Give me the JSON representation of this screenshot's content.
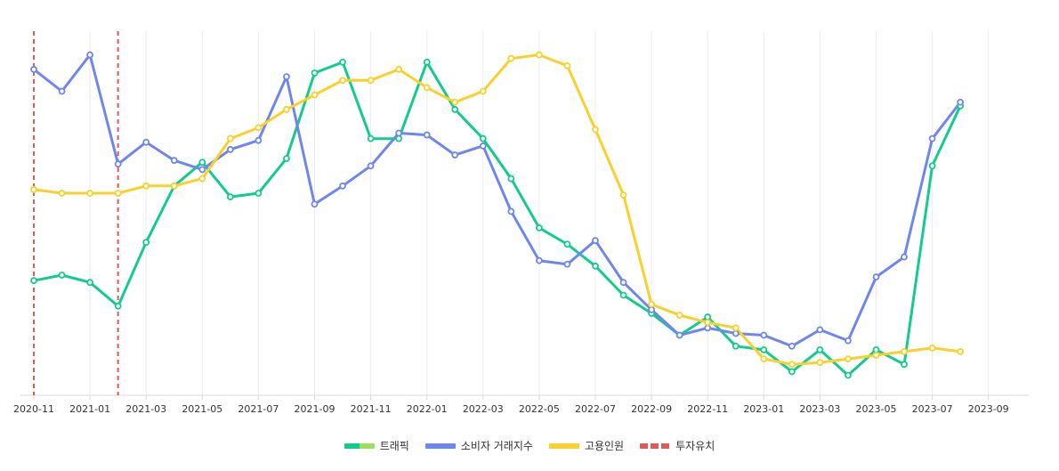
{
  "chart_data": {
    "type": "line",
    "title": "",
    "xlabel": "",
    "ylabel": "",
    "x_tick_labels": [
      "2020-11",
      "2021-01",
      "2021-03",
      "2021-05",
      "2021-07",
      "2021-09",
      "2021-11",
      "2022-01",
      "2022-03",
      "2022-05",
      "2022-07",
      "2022-09",
      "2022-11",
      "2023-01",
      "2023-03",
      "2023-05",
      "2023-07",
      "2023-09"
    ],
    "x": [
      "2020-11",
      "2020-12",
      "2021-01",
      "2021-02",
      "2021-03",
      "2021-04",
      "2021-05",
      "2021-06",
      "2021-07",
      "2021-08",
      "2021-09",
      "2021-10",
      "2021-11",
      "2021-12",
      "2022-01",
      "2022-02",
      "2022-03",
      "2022-04",
      "2022-05",
      "2022-06",
      "2022-07",
      "2022-08",
      "2022-09",
      "2022-10",
      "2022-11",
      "2022-12",
      "2023-01",
      "2023-02",
      "2023-03",
      "2023-04",
      "2023-05",
      "2023-06",
      "2023-07",
      "2023-08"
    ],
    "ylim": [
      0,
      100
    ],
    "y_axis_labels_shown": false,
    "grid": "vertical",
    "legend_position": "bottom",
    "series": [
      {
        "name": "트래픽",
        "color": "#12cc8f",
        "values": [
          31.5,
          33,
          31,
          24.5,
          42,
          57.5,
          64,
          54.5,
          55.5,
          65,
          88.5,
          91.5,
          70.5,
          70.5,
          91.5,
          78.5,
          70.5,
          59.5,
          46,
          41.5,
          35.5,
          27.5,
          22.5,
          16.5,
          21.5,
          13.5,
          12.5,
          6.5,
          12.5,
          5.5,
          12.5,
          8.5,
          63,
          79.5
        ]
      },
      {
        "name": "소비자 거래지수",
        "color": "#6f86ed",
        "values": [
          89.5,
          83.5,
          93.5,
          63.5,
          69.5,
          64.5,
          62,
          67.5,
          70,
          87.5,
          52.5,
          57.5,
          63,
          72,
          71.5,
          66,
          68.5,
          50.5,
          37,
          36,
          42.5,
          31,
          23.5,
          16.5,
          18.5,
          17,
          16.5,
          13.5,
          18,
          15,
          32.5,
          38,
          70.5,
          80.5
        ]
      },
      {
        "name": "고용인원",
        "color": "#fad02c",
        "values": [
          56.5,
          55.5,
          55.5,
          55.5,
          57.5,
          57.5,
          59.5,
          70.5,
          73.5,
          78.5,
          82.5,
          86.5,
          86.5,
          89.5,
          84.5,
          80.5,
          83.5,
          92.5,
          93.5,
          90.5,
          73,
          55,
          25,
          22,
          20,
          18.5,
          10,
          8.5,
          9,
          10,
          11,
          12,
          13,
          12
        ]
      }
    ],
    "annotations": {
      "name": "투자유치",
      "color": "#e05a5a",
      "style": "dashed-vertical-line",
      "x": [
        "2020-11",
        "2021-02"
      ]
    }
  },
  "legend": {
    "items": [
      {
        "label": "트래픽",
        "swatch": [
          "#12cc8f",
          "#9be15d"
        ]
      },
      {
        "label": "소비자 거래지수",
        "swatch": [
          "#6f86ed",
          "#6f86ed"
        ]
      },
      {
        "label": "고용인원",
        "swatch": [
          "#fad02c",
          "#fad02c"
        ]
      },
      {
        "label": "투자유치",
        "swatch": [
          "#e05a5a",
          "#e05a5a"
        ],
        "dashed": true
      }
    ]
  }
}
